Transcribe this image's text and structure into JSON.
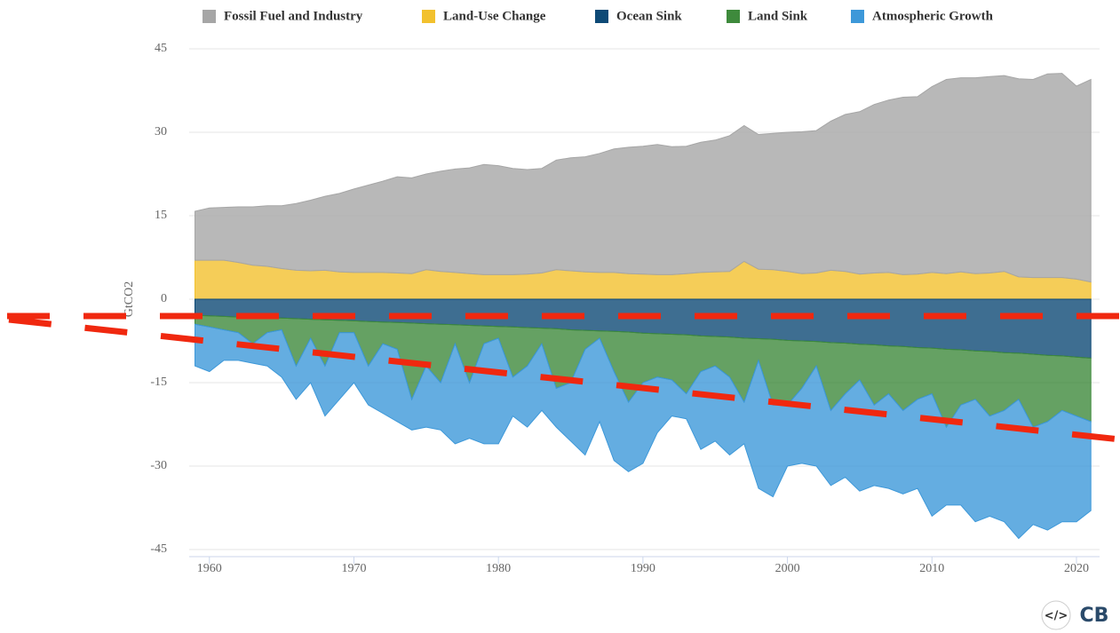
{
  "chart_data": {
    "type": "area",
    "y_label": "GtCO2",
    "x": [
      1959,
      1960,
      1961,
      1962,
      1963,
      1964,
      1965,
      1966,
      1967,
      1968,
      1969,
      1970,
      1971,
      1972,
      1973,
      1974,
      1975,
      1976,
      1977,
      1978,
      1979,
      1980,
      1981,
      1982,
      1983,
      1984,
      1985,
      1986,
      1987,
      1988,
      1989,
      1990,
      1991,
      1992,
      1993,
      1994,
      1995,
      1996,
      1997,
      1998,
      1999,
      2000,
      2001,
      2002,
      2003,
      2004,
      2005,
      2006,
      2007,
      2008,
      2009,
      2010,
      2011,
      2012,
      2013,
      2014,
      2015,
      2016,
      2017,
      2018,
      2019,
      2020,
      2021
    ],
    "xlim": [
      1958.6,
      2021.6
    ],
    "xticks": [
      1960,
      1970,
      1980,
      1990,
      2000,
      2010,
      2020
    ],
    "ylim": [
      -45,
      45
    ],
    "yticks": [
      -45,
      -30,
      -15,
      0,
      15,
      30,
      45
    ],
    "grid": true,
    "legend": "top",
    "series": [
      {
        "name": "Fossil Fuel and Industry",
        "color": "#a6a6a6",
        "values": [
          8.8,
          9.4,
          9.5,
          10.0,
          10.5,
          10.9,
          11.3,
          12.0,
          12.7,
          13.3,
          14.1,
          15.0,
          15.7,
          16.4,
          17.3,
          17.2,
          17.2,
          18.0,
          18.6,
          19.0,
          19.8,
          19.6,
          19.1,
          18.8,
          18.8,
          19.7,
          20.3,
          20.7,
          21.4,
          22.2,
          22.7,
          23.0,
          23.4,
          23.0,
          22.9,
          23.4,
          23.7,
          24.4,
          24.4,
          24.2,
          24.5,
          25.0,
          25.5,
          25.6,
          26.8,
          28.2,
          29.2,
          30.3,
          31.0,
          31.9,
          31.9,
          33.4,
          34.9,
          34.9,
          35.2,
          35.3,
          35.2,
          35.6,
          35.6,
          36.6,
          36.7,
          34.7,
          36.4
        ]
      },
      {
        "name": "Land-Use Change",
        "color": "#f2c12e",
        "values": [
          7.0,
          7.0,
          7.0,
          6.6,
          6.1,
          5.9,
          5.5,
          5.2,
          5.1,
          5.2,
          4.9,
          4.8,
          4.8,
          4.8,
          4.7,
          4.6,
          5.3,
          5.0,
          4.8,
          4.6,
          4.4,
          4.4,
          4.4,
          4.5,
          4.7,
          5.3,
          5.1,
          4.9,
          4.8,
          4.8,
          4.6,
          4.5,
          4.4,
          4.4,
          4.6,
          4.8,
          4.9,
          5.0,
          6.8,
          5.4,
          5.3,
          5.0,
          4.6,
          4.7,
          5.2,
          5.0,
          4.5,
          4.7,
          4.8,
          4.4,
          4.5,
          4.8,
          4.6,
          4.9,
          4.6,
          4.7,
          5.0,
          4.0,
          3.9,
          3.9,
          3.9,
          3.6,
          3.1
        ]
      },
      {
        "name": "Ocean Sink",
        "color": "#0e4a76",
        "values": [
          -2.9,
          -3.0,
          -3.1,
          -3.2,
          -3.2,
          -3.3,
          -3.4,
          -3.5,
          -3.6,
          -3.7,
          -3.8,
          -3.9,
          -4.0,
          -4.1,
          -4.2,
          -4.3,
          -4.4,
          -4.5,
          -4.6,
          -4.7,
          -4.8,
          -4.9,
          -5.0,
          -5.1,
          -5.2,
          -5.3,
          -5.5,
          -5.6,
          -5.7,
          -5.8,
          -5.9,
          -6.1,
          -6.2,
          -6.3,
          -6.4,
          -6.6,
          -6.7,
          -6.8,
          -7.0,
          -7.1,
          -7.2,
          -7.4,
          -7.5,
          -7.6,
          -7.8,
          -7.9,
          -8.1,
          -8.2,
          -8.4,
          -8.5,
          -8.7,
          -8.8,
          -9.0,
          -9.1,
          -9.3,
          -9.4,
          -9.6,
          -9.7,
          -9.9,
          -10.1,
          -10.2,
          -10.4,
          -10.6
        ]
      },
      {
        "name": "Land Sink",
        "color": "#3e8a3c",
        "values": [
          -1.6,
          -2.0,
          -2.4,
          -2.8,
          -4.8,
          -2.7,
          -2.1,
          -8.5,
          -3.4,
          -8.3,
          -2.2,
          -2.1,
          -8.0,
          -3.9,
          -4.8,
          -13.7,
          -7.6,
          -10.5,
          -3.4,
          -10.3,
          -3.2,
          -2.1,
          -9.0,
          -6.9,
          -2.8,
          -10.7,
          -9.5,
          -3.4,
          -1.3,
          -7.2,
          -12.6,
          -8.9,
          -7.8,
          -8.2,
          -10.6,
          -6.4,
          -5.3,
          -7.2,
          -11.5,
          -3.9,
          -11.8,
          -11.6,
          -8.5,
          -4.4,
          -12.2,
          -9.1,
          -6.4,
          -10.8,
          -8.6,
          -11.5,
          -9.3,
          -8.2,
          -14.0,
          -9.9,
          -8.7,
          -11.6,
          -10.4,
          -8.3,
          -13.1,
          -11.9,
          -9.8,
          -10.6,
          -11.4
        ]
      },
      {
        "name": "Atmospheric Growth",
        "color": "#3d98d9",
        "values": [
          -7.5,
          -8.0,
          -5.5,
          -5.0,
          -3.5,
          -6.0,
          -8.5,
          -6.0,
          -8.0,
          -9.0,
          -12.0,
          -9.0,
          -7.0,
          -12.5,
          -13.0,
          -5.5,
          -11.0,
          -8.5,
          -18.0,
          -10.0,
          -18.0,
          -19.0,
          -7.0,
          -11.0,
          -12.0,
          -7.0,
          -10.5,
          -19.0,
          -15.0,
          -16.0,
          -12.5,
          -14.5,
          -10.0,
          -6.5,
          -4.5,
          -14.0,
          -13.5,
          -14.0,
          -7.5,
          -23.0,
          -16.5,
          -11.0,
          -13.5,
          -18.0,
          -13.5,
          -15.0,
          -20.0,
          -14.5,
          -17.0,
          -15.0,
          -16.0,
          -22.0,
          -14.0,
          -18.0,
          -22.0,
          -18.0,
          -20.0,
          -25.0,
          -17.5,
          -19.5,
          -20.0,
          -19.0,
          -16.0
        ]
      }
    ]
  },
  "embed_icon": "</>",
  "logo": "CB"
}
